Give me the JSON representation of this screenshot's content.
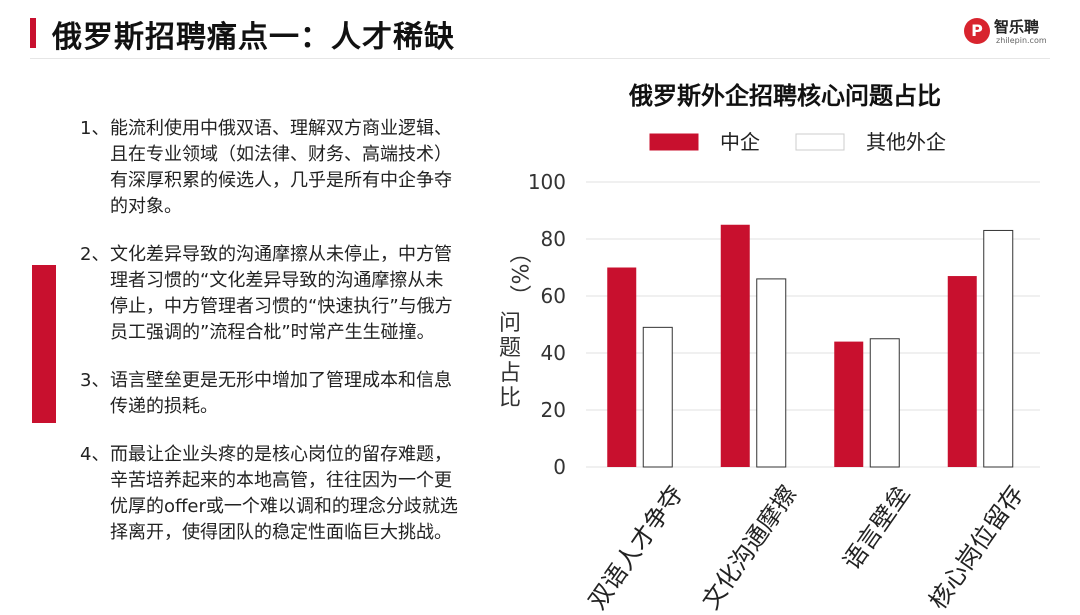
{
  "header": {
    "title": "俄罗斯招聘痛点一：人才稀缺",
    "logo_mark": "P",
    "logo_name": "智乐聘",
    "logo_domain": "zhilepin.com"
  },
  "points": [
    {
      "num": "1、",
      "text": "能流利使用中俄双语、理解双方商业逻辑、且在专业领域（如法律、财务、高端技术）有深厚积累的候选人，几乎是所有中企争夺的对象。"
    },
    {
      "num": "2、",
      "text": "文化差异导致的沟通摩擦从未停止，中方管理者习惯的“文化差异导致的沟通摩擦从未停止，中方管理者习惯的“快速执行”与俄方员工强调的”流程合枇”时常产生生碰撞。"
    },
    {
      "num": "3、",
      "text": "语言壁垒更是无形中增加了管理成本和信息传递的损耗。"
    },
    {
      "num": "4、",
      "text": "而最让企业头疼的是核心岗位的留存难题，辛苦培养起来的本地高管，往往因为一个更优厚的offer或一个难以调和的理念分歧就选择离开，使得团队的稳定性面临巨大挑战。"
    }
  ],
  "chart_data": {
    "type": "bar",
    "title": "俄罗斯外企招聘核心问题占比",
    "ylabel": "问题占比（%）",
    "ylabel_unit": "（%）",
    "ylabel_text": "问题占比",
    "xlabel": "",
    "ylim": [
      0,
      100
    ],
    "yticks": [
      0,
      20,
      40,
      60,
      80,
      100
    ],
    "grid": true,
    "legend_position": "top",
    "categories": [
      "双语人才争夺",
      "文化沟通摩擦",
      "语言壁垒",
      "核心岗位留存"
    ],
    "series": [
      {
        "name": "中企",
        "color": "#c8102e",
        "fill": "#c8102e",
        "values": [
          70,
          85,
          44,
          67
        ]
      },
      {
        "name": "其他外企",
        "color": "#333333",
        "fill": "#ffffff",
        "values": [
          49,
          66,
          45,
          83
        ]
      }
    ]
  }
}
